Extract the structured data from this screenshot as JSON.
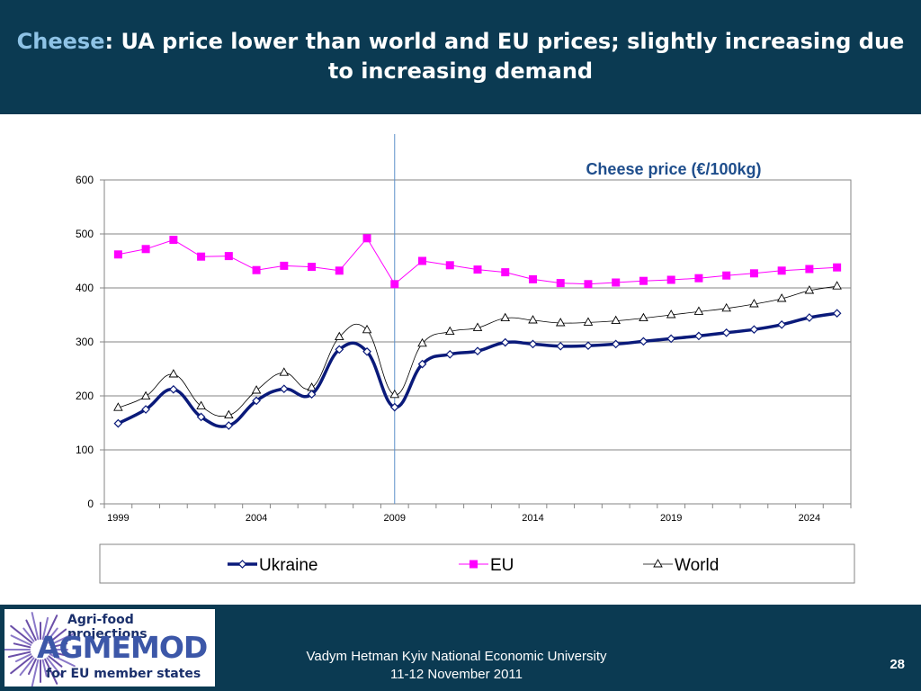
{
  "header": {
    "title_accent": "Cheese",
    "title_rest": ": UA price lower than world and EU prices; slightly increasing due to increasing demand"
  },
  "colors": {
    "header_bg": "#0b3a52",
    "ukraine": "#0a1a7a",
    "eu": "#ff00ff",
    "world": "#000000",
    "divider": "#5b8fc9",
    "chart_title": "#1f4e8c"
  },
  "chart_data": {
    "type": "line",
    "title": "Cheese price (€/100kg)",
    "xlabel": "",
    "ylabel": "",
    "x": [
      1999,
      2000,
      2001,
      2002,
      2003,
      2004,
      2005,
      2006,
      2007,
      2008,
      2009,
      2010,
      2011,
      2012,
      2013,
      2014,
      2015,
      2016,
      2017,
      2018,
      2019,
      2020,
      2021,
      2022,
      2023,
      2024,
      2025
    ],
    "x_tick_labels": [
      "1999",
      "2004",
      "2009",
      "2014",
      "2019",
      "2024"
    ],
    "x_tick_values": [
      1999,
      2004,
      2009,
      2014,
      2019,
      2024
    ],
    "y_ticks": [
      0,
      100,
      200,
      300,
      400,
      500,
      600
    ],
    "ylim": [
      0,
      600
    ],
    "grid": "horizontal",
    "legend_position": "bottom",
    "divider_year": 2009,
    "series": [
      {
        "name": "Ukraine",
        "color": "#0a1a7a",
        "marker": "diamond",
        "values": [
          149,
          175,
          212,
          161,
          145,
          191,
          213,
          203,
          286,
          282,
          179,
          259,
          277,
          283,
          299,
          296,
          292,
          293,
          296,
          301,
          306,
          311,
          317,
          323,
          332,
          345,
          353
        ]
      },
      {
        "name": "EU",
        "color": "#ff00ff",
        "marker": "square",
        "values": [
          462,
          472,
          489,
          458,
          459,
          433,
          441,
          439,
          432,
          492,
          407,
          450,
          442,
          434,
          429,
          416,
          409,
          407,
          410,
          413,
          415,
          418,
          423,
          427,
          432,
          435,
          438
        ]
      },
      {
        "name": "World",
        "color": "#000000",
        "marker": "triangle",
        "values": [
          178,
          199,
          240,
          181,
          164,
          210,
          243,
          215,
          309,
          322,
          202,
          297,
          319,
          326,
          344,
          340,
          335,
          336,
          339,
          344,
          350,
          356,
          362,
          370,
          380,
          395,
          403
        ]
      }
    ]
  },
  "logo": {
    "top_text": "Agri-food projections",
    "main_text": "AGMEMOD",
    "bottom_text": "for EU member states"
  },
  "footer": {
    "line1": "Vadym Hetman Kyiv National Economic University",
    "line2": "11-12 November 2011",
    "page_number": "28"
  }
}
